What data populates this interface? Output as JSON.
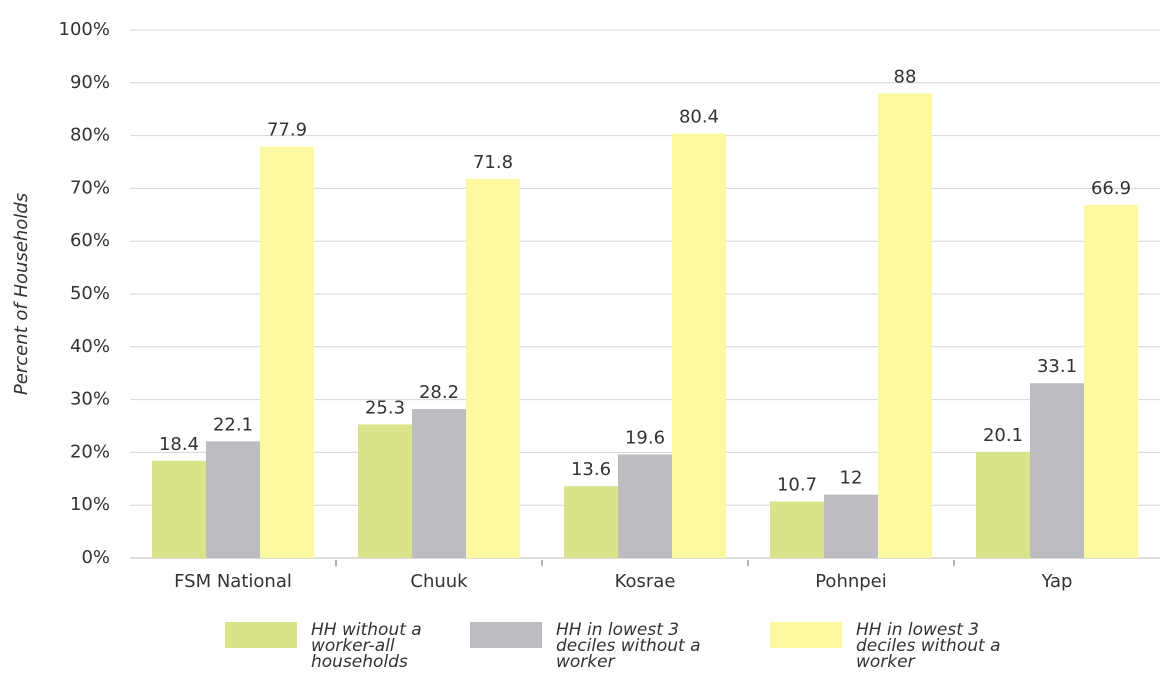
{
  "chart_data": {
    "type": "bar",
    "y_label": "Percent of Households",
    "categories": [
      "FSM National",
      "Chuuk",
      "Kosrae",
      "Pohnpei",
      "Yap"
    ],
    "series": [
      {
        "name": "HH without a worker-all households",
        "color": "#d9e48a",
        "values": [
          18.4,
          25.3,
          13.6,
          10.7,
          20.1
        ]
      },
      {
        "name": "HH in lowest 3 deciles without a worker",
        "color": "#bcbdc0",
        "values": [
          22.1,
          28.2,
          19.6,
          12,
          33.1
        ]
      },
      {
        "name": "HH in lowest 3 deciles without a worker",
        "color": "#fcf9a0",
        "values": [
          77.9,
          71.8,
          80.4,
          88,
          66.9
        ]
      }
    ],
    "ylim": [
      0,
      100
    ],
    "yticks": [
      {
        "value": 0,
        "label": "0%"
      },
      {
        "value": 10,
        "label": "10%"
      },
      {
        "value": 20,
        "label": "20%"
      },
      {
        "value": 30,
        "label": "30%"
      },
      {
        "value": 40,
        "label": "40%"
      },
      {
        "value": 50,
        "label": "50%"
      },
      {
        "value": 60,
        "label": "60%"
      },
      {
        "value": 70,
        "label": "70%"
      },
      {
        "value": 80,
        "label": "80%"
      },
      {
        "value": 90,
        "label": "90%"
      },
      {
        "value": 100,
        "label": "100%"
      }
    ],
    "grid": true
  }
}
